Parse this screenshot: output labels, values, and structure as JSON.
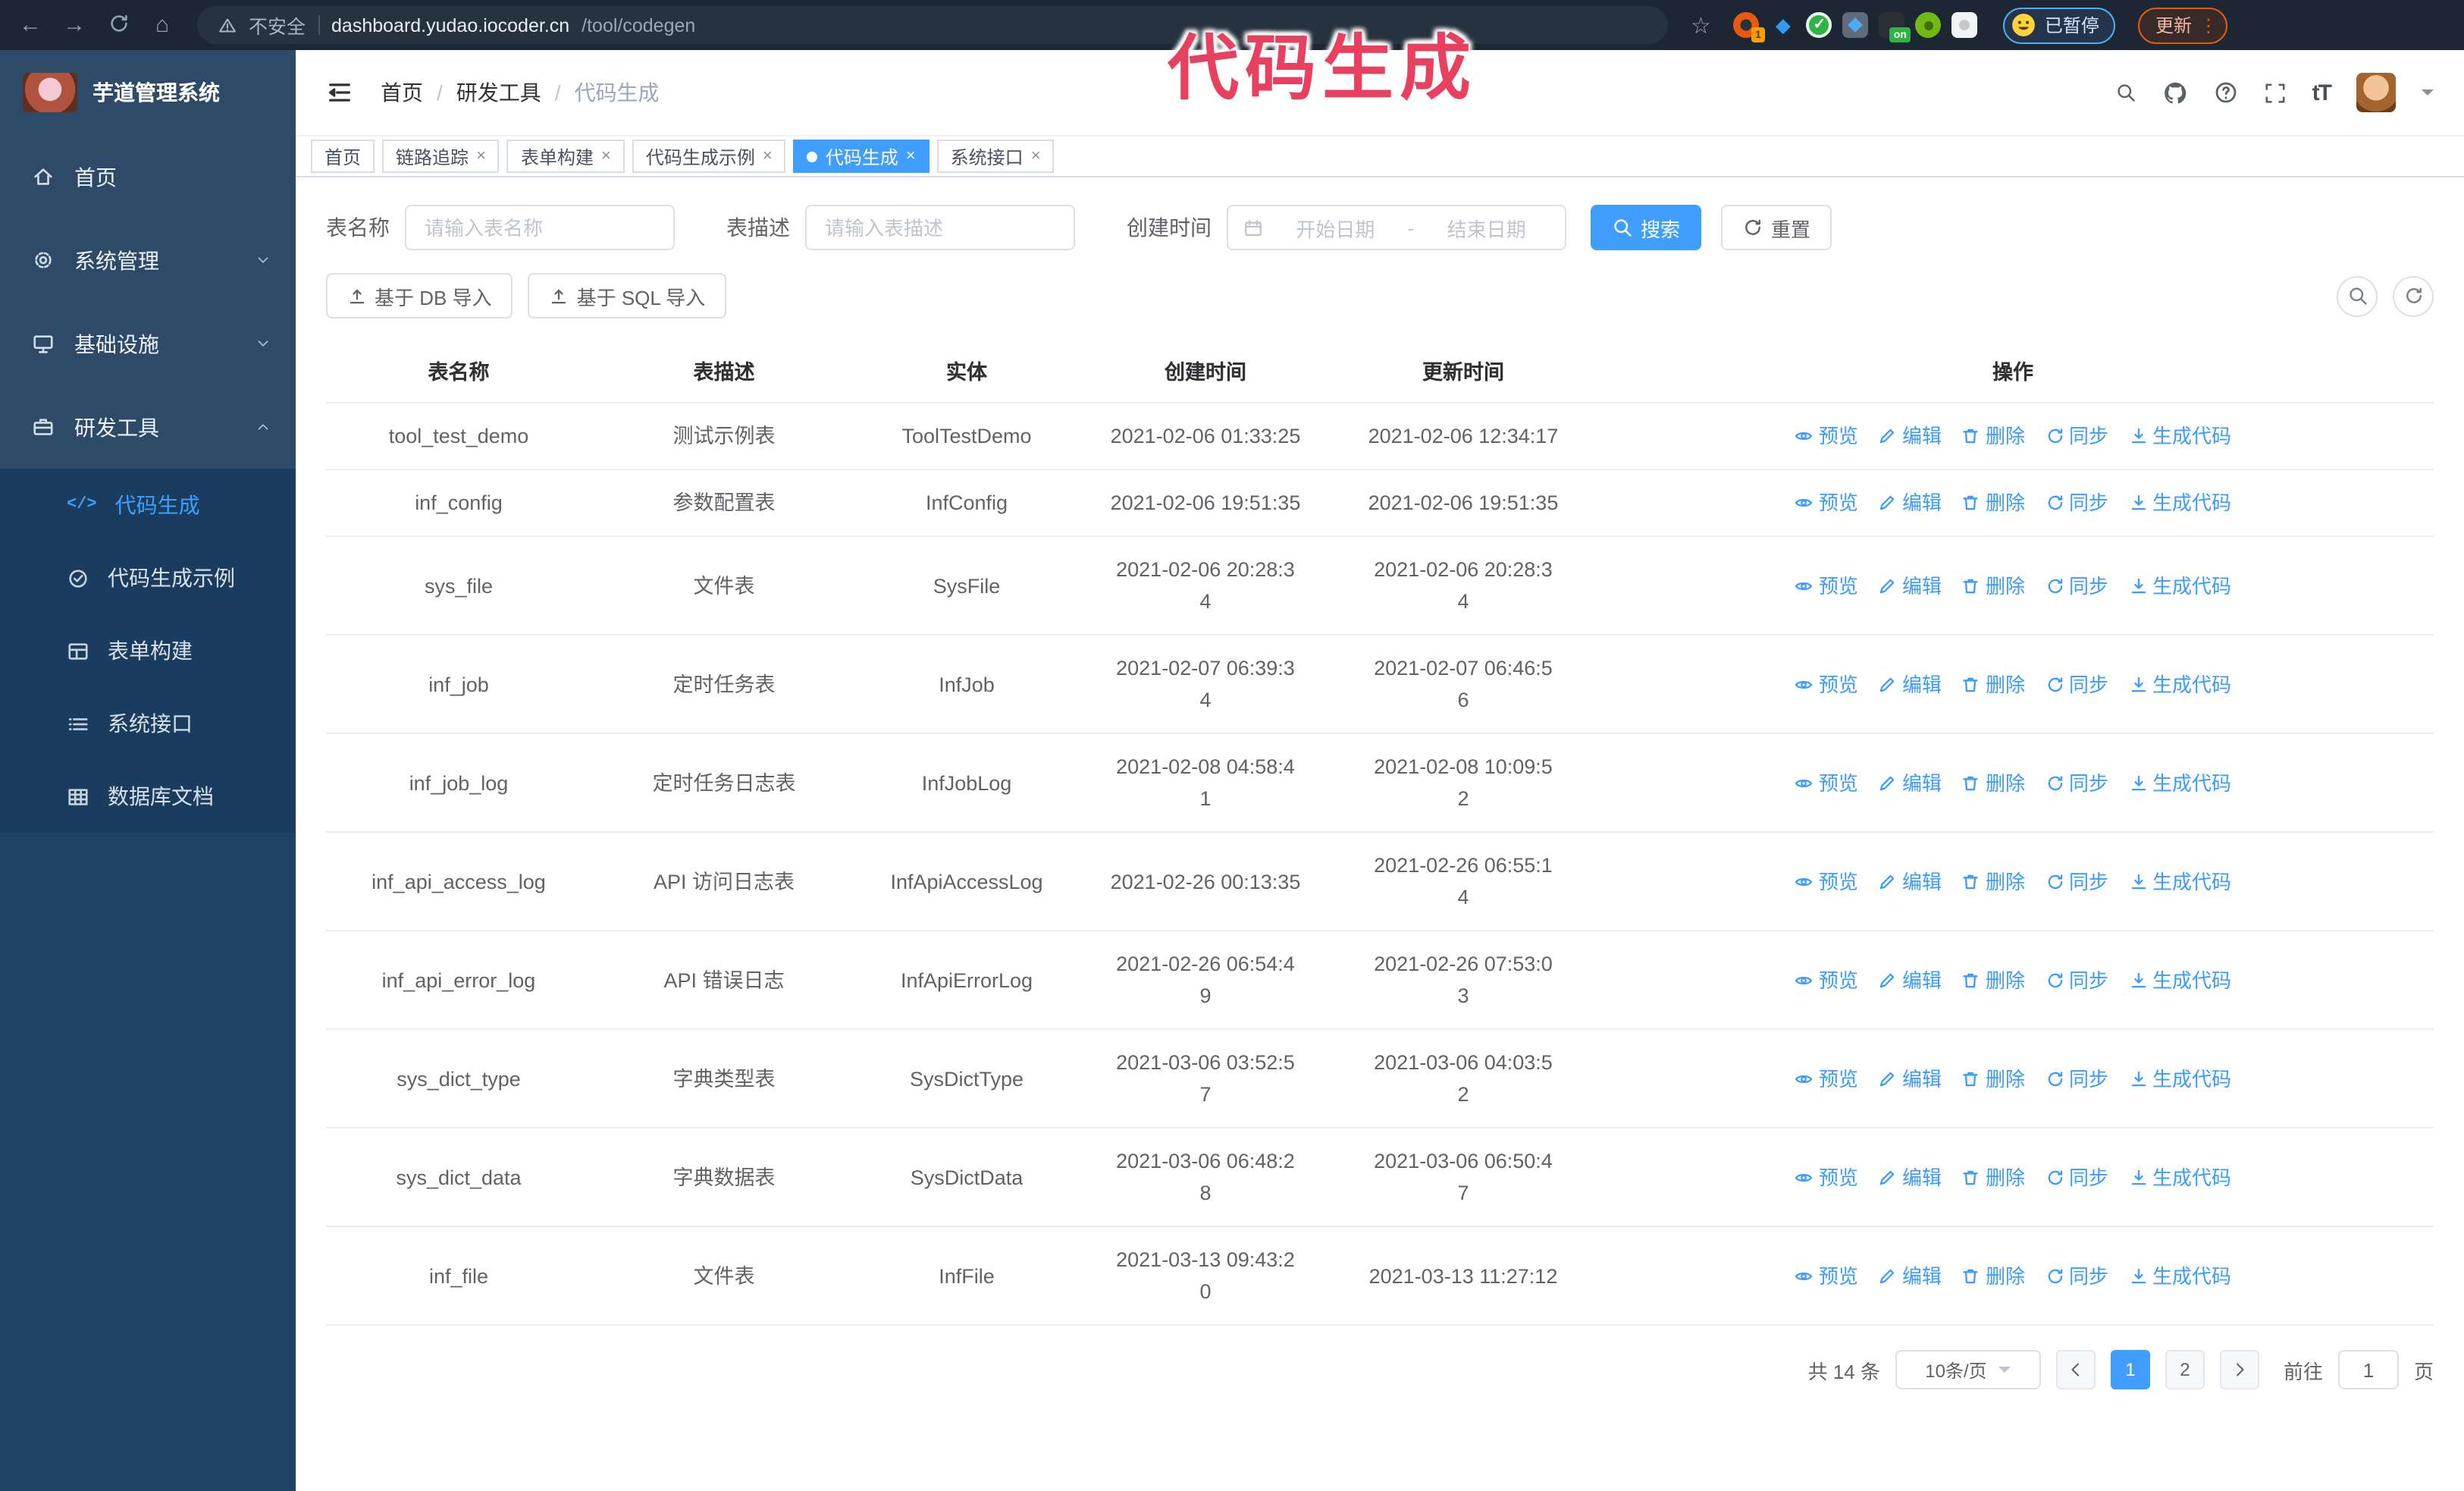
{
  "theme": {
    "accent": "#409eff",
    "sidebar_bg": "#2d4b68",
    "submenu_bg": "#1a3d5f",
    "chrome_bg": "#1d2733",
    "annotation_color": "#e8415f"
  },
  "browser": {
    "security_label": "不安全",
    "url_domain": "dashboard.yudao.iocoder.cn",
    "url_path": "/tool/codegen",
    "paused_button_label": "已暂停",
    "update_button_label": "更新",
    "extensions": [
      {
        "name": "orange-extension-icon",
        "badge": "1"
      },
      {
        "name": "gem-extension-icon",
        "glyph": "◆"
      },
      {
        "name": "green-check-extension-icon",
        "glyph": "✓"
      },
      {
        "name": "grid-extension-icon"
      },
      {
        "name": "dark-extension-icon",
        "badge": "on"
      },
      {
        "name": "green-pet-extension-icon"
      },
      {
        "name": "puzzle-extensions-icon"
      }
    ]
  },
  "annotation": {
    "text": "代码生成"
  },
  "sidebar": {
    "logo_title": "芋道管理系统",
    "items": [
      {
        "label": "首页",
        "icon": "home-icon",
        "expand": ""
      },
      {
        "label": "系统管理",
        "icon": "gear-icon",
        "expand": "down"
      },
      {
        "label": "基础设施",
        "icon": "infrastructure-icon",
        "expand": "down"
      },
      {
        "label": "研发工具",
        "icon": "tools-icon",
        "expand": "up"
      }
    ],
    "submenu": [
      {
        "label": "代码生成",
        "icon": "code-icon",
        "active": true
      },
      {
        "label": "代码生成示例",
        "icon": "example-icon",
        "active": false
      },
      {
        "label": "表单构建",
        "icon": "form-icon",
        "active": false
      },
      {
        "label": "系统接口",
        "icon": "api-icon",
        "active": false
      },
      {
        "label": "数据库文档",
        "icon": "database-icon",
        "active": false
      }
    ]
  },
  "header": {
    "breadcrumb": [
      "首页",
      "研发工具",
      "代码生成"
    ],
    "separator": "/"
  },
  "tabs": [
    {
      "label": "首页",
      "closable": false,
      "active": false
    },
    {
      "label": "链路追踪",
      "closable": true,
      "active": false
    },
    {
      "label": "表单构建",
      "closable": true,
      "active": false
    },
    {
      "label": "代码生成示例",
      "closable": true,
      "active": false
    },
    {
      "label": "代码生成",
      "closable": true,
      "active": true
    },
    {
      "label": "系统接口",
      "closable": true,
      "active": false
    }
  ],
  "filters": {
    "table_name_label": "表名称",
    "table_name_placeholder": "请输入表名称",
    "table_desc_label": "表描述",
    "table_desc_placeholder": "请输入表描述",
    "create_time_label": "创建时间",
    "date_start_placeholder": "开始日期",
    "date_separator": "-",
    "date_end_placeholder": "结束日期",
    "search_button": "搜索",
    "reset_button": "重置"
  },
  "toolbar": {
    "import_db_button": "基于 DB 导入",
    "import_sql_button": "基于 SQL 导入"
  },
  "table": {
    "columns": [
      "表名称",
      "表描述",
      "实体",
      "创建时间",
      "更新时间",
      "操作"
    ],
    "actions": [
      "预览",
      "编辑",
      "删除",
      "同步",
      "生成代码"
    ],
    "rows": [
      {
        "name": "tool_test_demo",
        "desc": "测试示例表",
        "entity": "ToolTestDemo",
        "created": "2021-02-06 01:33:25",
        "updated": "2021-02-06 12:34:17"
      },
      {
        "name": "inf_config",
        "desc": "参数配置表",
        "entity": "InfConfig",
        "created": "2021-02-06 19:51:35",
        "updated": "2021-02-06 19:51:35"
      },
      {
        "name": "sys_file",
        "desc": "文件表",
        "entity": "SysFile",
        "created": "2021-02-06 20:28:3\n4",
        "updated": "2021-02-06 20:28:3\n4"
      },
      {
        "name": "inf_job",
        "desc": "定时任务表",
        "entity": "InfJob",
        "created": "2021-02-07 06:39:3\n4",
        "updated": "2021-02-07 06:46:5\n6"
      },
      {
        "name": "inf_job_log",
        "desc": "定时任务日志表",
        "entity": "InfJobLog",
        "created": "2021-02-08 04:58:4\n1",
        "updated": "2021-02-08 10:09:5\n2"
      },
      {
        "name": "inf_api_access_log",
        "desc": "API 访问日志表",
        "entity": "InfApiAccessLog",
        "created": "2021-02-26 00:13:35",
        "updated": "2021-02-26 06:55:1\n4"
      },
      {
        "name": "inf_api_error_log",
        "desc": "API 错误日志",
        "entity": "InfApiErrorLog",
        "created": "2021-02-26 06:54:4\n9",
        "updated": "2021-02-26 07:53:0\n3"
      },
      {
        "name": "sys_dict_type",
        "desc": "字典类型表",
        "entity": "SysDictType",
        "created": "2021-03-06 03:52:5\n7",
        "updated": "2021-03-06 04:03:5\n2"
      },
      {
        "name": "sys_dict_data",
        "desc": "字典数据表",
        "entity": "SysDictData",
        "created": "2021-03-06 06:48:2\n8",
        "updated": "2021-03-06 06:50:4\n7"
      },
      {
        "name": "inf_file",
        "desc": "文件表",
        "entity": "InfFile",
        "created": "2021-03-13 09:43:2\n0",
        "updated": "2021-03-13 11:27:12"
      }
    ]
  },
  "pagination": {
    "total": "共 14 条",
    "page_size": "10条/页",
    "pages": [
      "1",
      "2"
    ],
    "active_page": "1",
    "goto_label": "前往",
    "goto_value": "1",
    "goto_suffix": "页"
  }
}
